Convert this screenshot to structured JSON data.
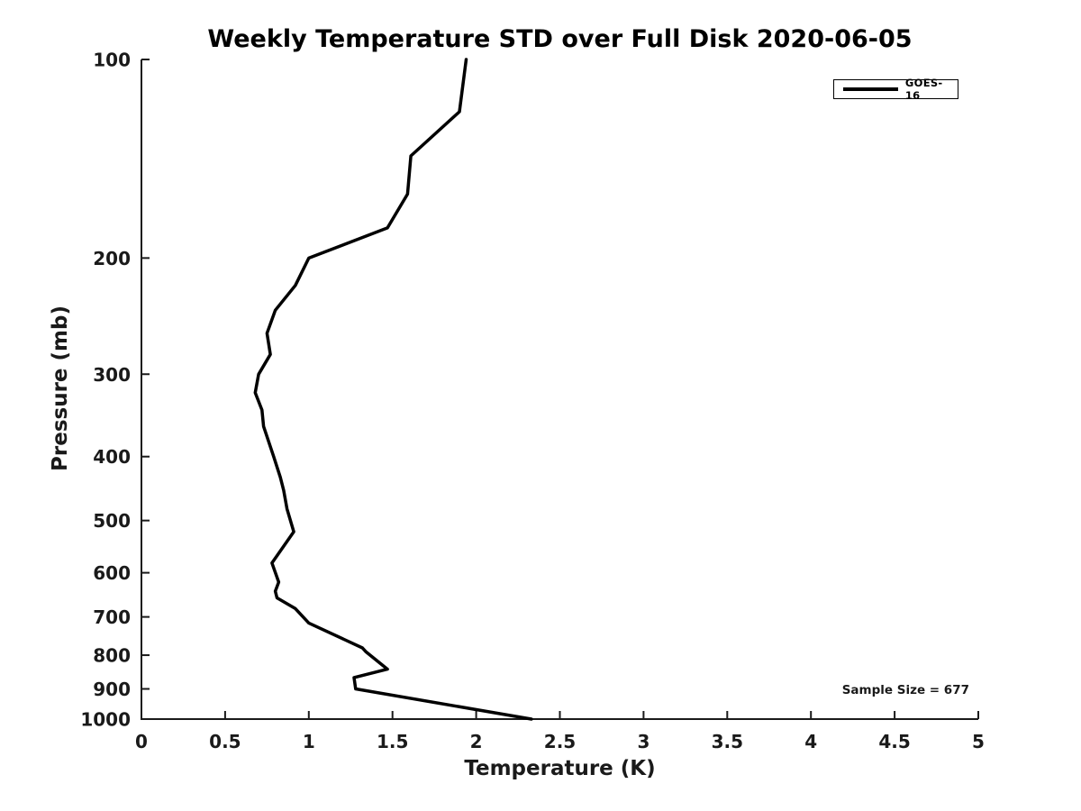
{
  "chart_data": {
    "type": "line",
    "title": "Weekly Temperature STD over Full Disk 2020-06-05",
    "xlabel": "Temperature (K)",
    "ylabel": "Pressure (mb)",
    "xlim": [
      0,
      5
    ],
    "ylim": [
      100,
      1000
    ],
    "y_scale": "log",
    "y_axis_inverted_pressure": true,
    "grid": false,
    "box": "left-bottom-spines-only",
    "tick_direction": "in",
    "x_ticks": [
      0,
      0.5,
      1,
      1.5,
      2,
      2.5,
      3,
      3.5,
      4,
      4.5,
      5
    ],
    "x_tick_labels": [
      "0",
      "0.5",
      "1",
      "1.5",
      "2",
      "2.5",
      "3",
      "3.5",
      "4",
      "4.5",
      "5"
    ],
    "y_ticks": [
      100,
      200,
      300,
      400,
      500,
      600,
      700,
      800,
      900,
      1000
    ],
    "y_tick_labels": [
      "100",
      "200",
      "300",
      "400",
      "500",
      "600",
      "700",
      "800",
      "900",
      "1000"
    ],
    "axis_color": "#1a1a1a",
    "legend": {
      "position": "upper-right",
      "framed": true,
      "border_color": "#000000"
    },
    "annotation": "Sample Size = 677",
    "series": [
      {
        "name": "GOES-16",
        "color": "#000000",
        "line_width": 3.5,
        "pressure_mb": [
          100,
          120,
          140,
          160,
          180,
          200,
          220,
          240,
          260,
          280,
          300,
          320,
          340,
          360,
          400,
          430,
          450,
          480,
          520,
          580,
          620,
          640,
          655,
          680,
          715,
          780,
          790,
          840,
          865,
          900,
          1000
        ],
        "temp_std_k": [
          1.94,
          1.9,
          1.61,
          1.59,
          1.47,
          1.0,
          0.92,
          0.8,
          0.75,
          0.77,
          0.7,
          0.68,
          0.72,
          0.73,
          0.79,
          0.83,
          0.85,
          0.87,
          0.91,
          0.78,
          0.82,
          0.8,
          0.81,
          0.92,
          1.0,
          1.32,
          1.34,
          1.47,
          1.27,
          1.28,
          2.33
        ]
      }
    ]
  }
}
